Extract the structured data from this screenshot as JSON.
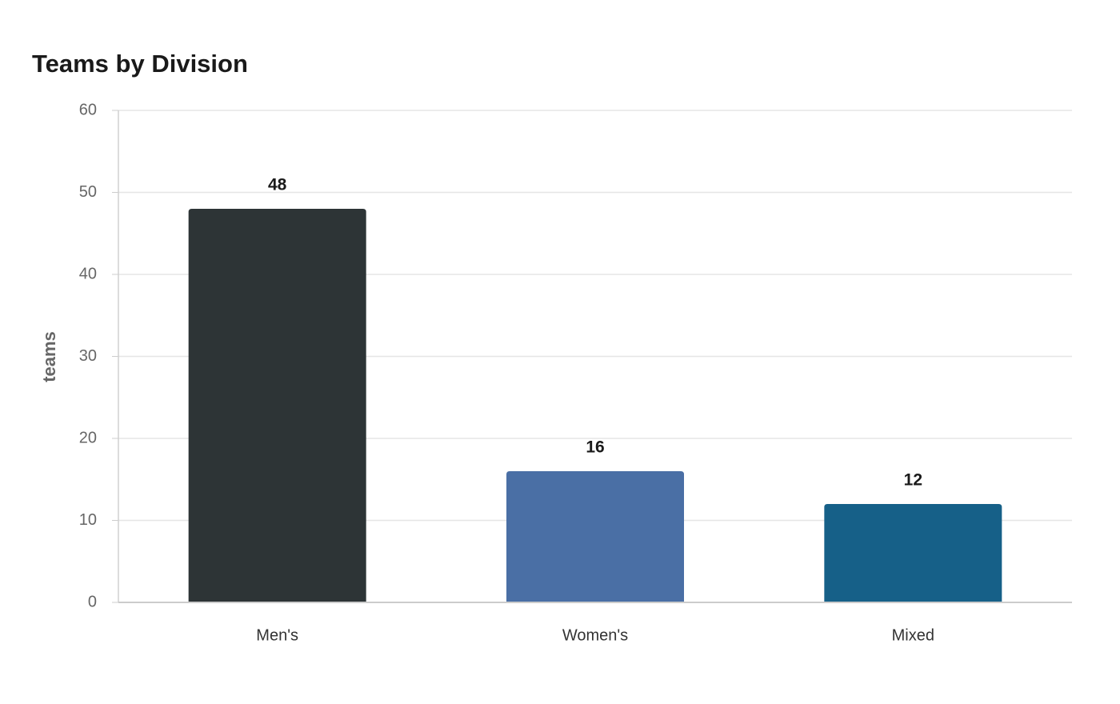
{
  "chart_data": {
    "type": "bar",
    "title": "Teams by Division",
    "xlabel": "",
    "ylabel": "teams",
    "categories": [
      "Men's",
      "Women's",
      "Mixed"
    ],
    "values": [
      48,
      16,
      12
    ],
    "ylim": [
      0,
      60
    ],
    "yticks": [
      0,
      10,
      20,
      30,
      40,
      50,
      60
    ],
    "colors": [
      "#2d3436",
      "#4a6fa5",
      "#166088"
    ],
    "grid": true,
    "data_labels": true,
    "legend": "none"
  }
}
